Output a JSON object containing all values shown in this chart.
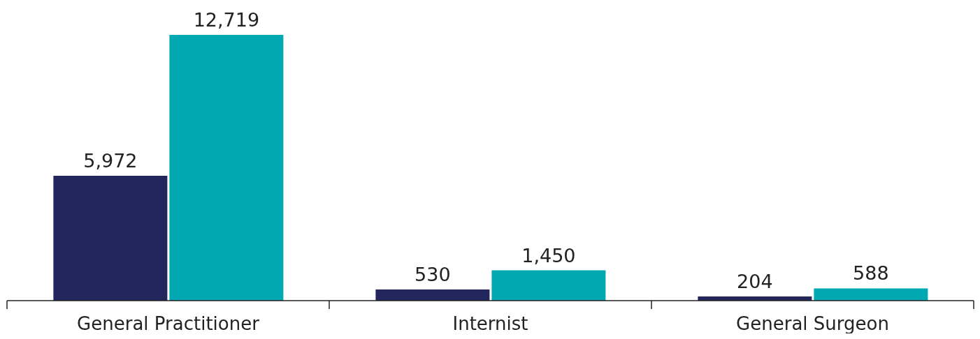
{
  "chart_data": {
    "type": "bar",
    "categories": [
      "General Practitioner",
      "Internist",
      "General Surgeon"
    ],
    "series": [
      {
        "color": "#22265c",
        "values": [
          5972,
          530,
          204
        ],
        "value_labels": [
          "5,972",
          "530",
          "204"
        ]
      },
      {
        "color": "#02a8b1",
        "values": [
          12719,
          1450,
          588
        ],
        "value_labels": [
          "12,719",
          "1,450",
          "588"
        ]
      }
    ],
    "grid": false,
    "legend": false
  }
}
